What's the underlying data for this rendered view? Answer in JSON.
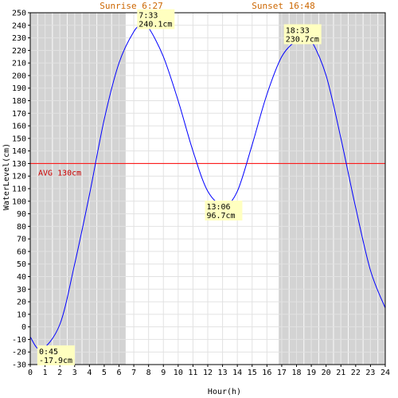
{
  "chart_data": {
    "type": "line",
    "xlabel": "Hour(h)",
    "ylabel": "WaterLevel(cm)",
    "xlim": [
      0,
      24
    ],
    "ylim": [
      -30,
      250
    ],
    "x_ticks": [
      0,
      1,
      2,
      3,
      4,
      5,
      6,
      7,
      8,
      9,
      10,
      11,
      12,
      13,
      14,
      15,
      16,
      17,
      18,
      19,
      20,
      21,
      22,
      23,
      24
    ],
    "y_ticks": [
      -30,
      -20,
      -10,
      0,
      10,
      20,
      30,
      40,
      50,
      60,
      70,
      80,
      90,
      100,
      110,
      120,
      130,
      140,
      150,
      160,
      170,
      180,
      190,
      200,
      210,
      220,
      230,
      240,
      250
    ],
    "sunrise": {
      "label": "Sunrise 6:27",
      "hour": 6.45
    },
    "sunset": {
      "label": "Sunset 16:48",
      "hour": 16.8
    },
    "average": {
      "label": "AVG 130cm",
      "value": 130,
      "color": "#ff0000"
    },
    "series": [
      {
        "color": "#0000ff",
        "x": [
          0,
          0.75,
          2,
          3,
          4,
          5,
          6,
          7,
          7.55,
          8,
          9,
          10,
          11,
          12,
          13.1,
          14,
          15,
          16,
          17,
          18,
          18.55,
          19,
          20,
          21,
          22,
          23,
          24
        ],
        "values": [
          -8,
          -17.9,
          2,
          50,
          105,
          165,
          210,
          235,
          240.1,
          238,
          215,
          180,
          140,
          108,
          96.7,
          108,
          145,
          185,
          215,
          228,
          230.7,
          228,
          200,
          150,
          95,
          45,
          15
        ]
      }
    ],
    "annotations": [
      {
        "time": "0:45",
        "value": "-17.9cm",
        "x": 0.75,
        "y": -17.9
      },
      {
        "time": "7:33",
        "value": "240.1cm",
        "x": 7.55,
        "y": 240.1
      },
      {
        "time": "13:06",
        "value": "96.7cm",
        "x": 13.1,
        "y": 96.7
      },
      {
        "time": "18:33",
        "value": "230.7cm",
        "x": 18.55,
        "y": 230.7
      }
    ],
    "colors": {
      "night": "#d3d3d3",
      "grid": "#dddddd",
      "sun_text": "#cc6600",
      "annotation_bg": "#ffffc0"
    }
  }
}
